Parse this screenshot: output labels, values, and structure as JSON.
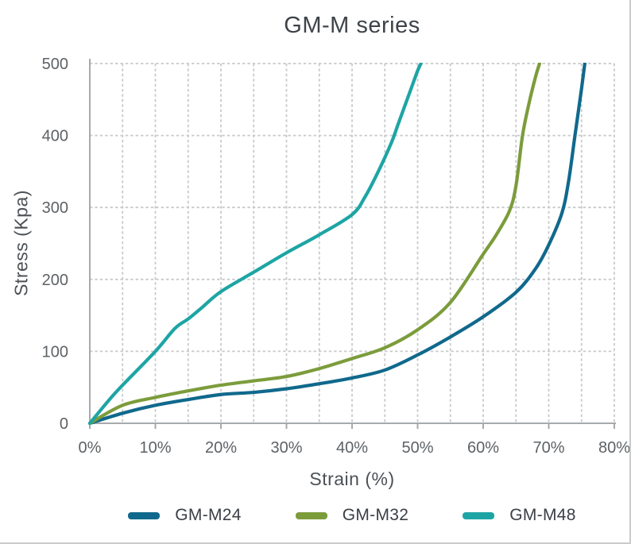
{
  "chart_data": {
    "type": "line",
    "title": "GM-M series",
    "xlabel": "Strain (%)",
    "ylabel": "Stress (Kpa)",
    "xlim": [
      0,
      80
    ],
    "ylim": [
      0,
      500
    ],
    "x_ticks": [
      "0%",
      "10%",
      "20%",
      "30%",
      "40%",
      "50%",
      "60%",
      "70%",
      "80%"
    ],
    "x_tick_values": [
      0,
      10,
      20,
      30,
      40,
      50,
      60,
      70,
      80
    ],
    "y_ticks": [
      "0",
      "100",
      "200",
      "300",
      "400",
      "500"
    ],
    "y_tick_values": [
      0,
      100,
      200,
      300,
      400,
      500
    ],
    "grid": {
      "style": "dashed",
      "vertical_step_pct": 5,
      "horizontal_step_kpa": 100
    },
    "legend_position": "bottom",
    "series": [
      {
        "name": "GM-M24",
        "color": "#10698c",
        "points": [
          [
            0,
            0
          ],
          [
            5,
            14
          ],
          [
            10,
            25
          ],
          [
            15,
            33
          ],
          [
            20,
            40
          ],
          [
            25,
            43
          ],
          [
            30,
            48
          ],
          [
            35,
            55
          ],
          [
            40,
            63
          ],
          [
            45,
            74
          ],
          [
            50,
            95
          ],
          [
            55,
            120
          ],
          [
            60,
            148
          ],
          [
            65,
            182
          ],
          [
            68,
            215
          ],
          [
            70,
            248
          ],
          [
            72,
            292
          ],
          [
            73,
            335
          ],
          [
            74,
            400
          ],
          [
            75,
            465
          ],
          [
            75.5,
            500
          ]
        ]
      },
      {
        "name": "GM-M32",
        "color": "#7c9c3c",
        "points": [
          [
            0,
            0
          ],
          [
            5,
            25
          ],
          [
            10,
            36
          ],
          [
            15,
            45
          ],
          [
            20,
            53
          ],
          [
            25,
            59
          ],
          [
            30,
            65
          ],
          [
            35,
            76
          ],
          [
            40,
            90
          ],
          [
            45,
            105
          ],
          [
            50,
            130
          ],
          [
            55,
            168
          ],
          [
            60,
            235
          ],
          [
            62,
            262
          ],
          [
            64,
            295
          ],
          [
            65,
            330
          ],
          [
            66,
            400
          ],
          [
            67,
            445
          ],
          [
            68,
            482
          ],
          [
            68.6,
            500
          ]
        ]
      },
      {
        "name": "GM-M48",
        "color": "#1da5a4",
        "points": [
          [
            0,
            0
          ],
          [
            3,
            33
          ],
          [
            5,
            53
          ],
          [
            10,
            100
          ],
          [
            13,
            132
          ],
          [
            15,
            145
          ],
          [
            17,
            160
          ],
          [
            20,
            183
          ],
          [
            25,
            210
          ],
          [
            30,
            237
          ],
          [
            35,
            262
          ],
          [
            40,
            290
          ],
          [
            42,
            315
          ],
          [
            44,
            350
          ],
          [
            46,
            390
          ],
          [
            47,
            415
          ],
          [
            48,
            440
          ],
          [
            49,
            465
          ],
          [
            50,
            490
          ],
          [
            50.5,
            500
          ]
        ]
      }
    ]
  }
}
